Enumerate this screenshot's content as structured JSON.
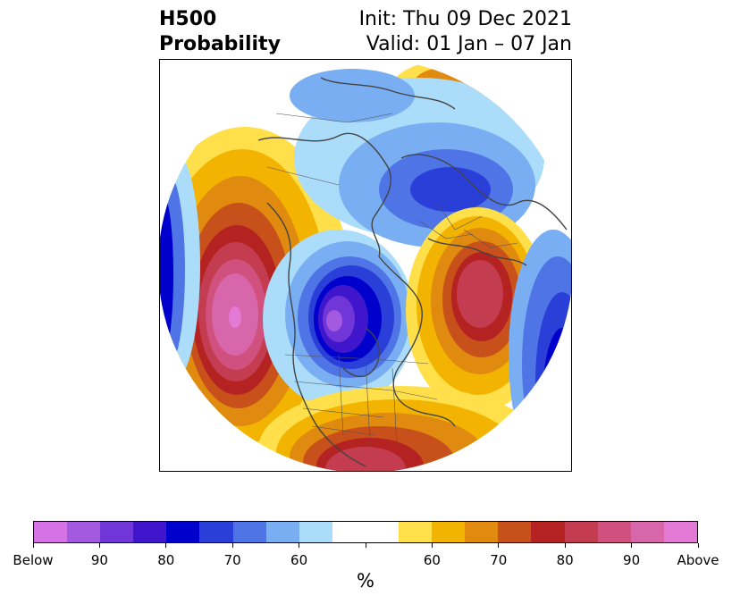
{
  "header": {
    "title_line1": "H500",
    "title_line2": "Probability",
    "init": "Init: Thu 09 Dec 2021",
    "valid": "Valid: 01 Jan – 07 Jan"
  },
  "colorbar": {
    "units": "%",
    "colors": [
      "#d572e6",
      "#a35ae0",
      "#7136d8",
      "#3f16cc",
      "#0000cc",
      "#2a3ed8",
      "#4e74e6",
      "#79aef2",
      "#abdcfa",
      "#ffffff",
      "#ffffff",
      "#ffe04a",
      "#f2b400",
      "#e08a10",
      "#c8501a",
      "#b42222",
      "#c43c50",
      "#d0507e",
      "#d866aa",
      "#e27ad6"
    ],
    "tick_labels": [
      "Below",
      "90",
      "80",
      "70",
      "60",
      "",
      "60",
      "70",
      "80",
      "90",
      "Above"
    ]
  },
  "map": {
    "projection": "north-polar-stereographic",
    "field": "500 hPa height anomaly probability",
    "features": [
      {
        "name": "gulf-of-alaska-ridge",
        "category": "above",
        "peak_percent": 90
      },
      {
        "name": "canada-trough",
        "category": "below",
        "peak_percent": 90
      },
      {
        "name": "southeast-us-ridge",
        "category": "above",
        "peak_percent": 80
      },
      {
        "name": "north-atlantic-ridge",
        "category": "above",
        "peak_percent": 80
      },
      {
        "name": "siberia-trough",
        "category": "below",
        "peak_percent": 70
      },
      {
        "name": "europe-trough",
        "category": "below",
        "peak_percent": 70
      },
      {
        "name": "arctic-russia-ridge",
        "category": "above",
        "peak_percent": 60
      }
    ]
  }
}
